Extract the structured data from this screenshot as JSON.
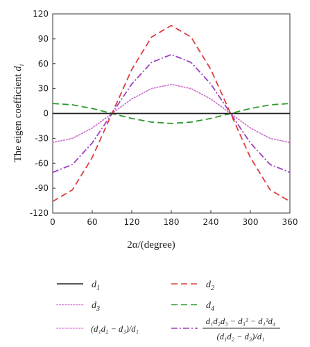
{
  "chart_data": {
    "type": "line",
    "xlabel": "2α/(degree)",
    "ylabel": "The eigen coefficient d",
    "ylabel_sub": "i",
    "xlim": [
      0,
      360
    ],
    "ylim": [
      -120,
      120
    ],
    "xticks": [
      0,
      60,
      120,
      180,
      240,
      300,
      360
    ],
    "yticks": [
      -120,
      -90,
      -60,
      -30,
      0,
      30,
      60,
      90,
      120
    ],
    "grid": false,
    "legend_placement": "below",
    "x": [
      0,
      30,
      60,
      90,
      120,
      150,
      180,
      210,
      240,
      270,
      300,
      330,
      360
    ],
    "series": [
      {
        "name": "d1",
        "color": "#222222",
        "dash": "solid",
        "values": [
          0,
          0,
          0,
          0,
          0,
          0,
          0,
          0,
          0,
          0,
          0,
          0,
          0
        ]
      },
      {
        "name": "d2",
        "color": "#e03c3c",
        "dash": "dashed",
        "values": [
          -106,
          -92,
          -53,
          0,
          53,
          92,
          106,
          92,
          53,
          0,
          -53,
          -92,
          -106
        ]
      },
      {
        "name": "d3",
        "color": "#cc77cc",
        "dash": "dotted",
        "values": [
          -35,
          -30,
          -17.5,
          0,
          17.5,
          30,
          35,
          30,
          17.5,
          0,
          -17.5,
          -30,
          -35
        ]
      },
      {
        "name": "d4",
        "color": "#2e9a2e",
        "dash": "dashed",
        "values": [
          12,
          10.4,
          6,
          0,
          -6,
          -10.4,
          -12,
          -10.4,
          -6,
          0,
          6,
          10.4,
          12
        ]
      },
      {
        "name": "(d1d2 − d3)/d1",
        "color": "#dd88dd",
        "dash": "dotted",
        "values": [
          -35,
          -30,
          -17.5,
          0,
          17.5,
          30,
          35,
          30,
          17.5,
          0,
          -17.5,
          -30,
          -35
        ]
      },
      {
        "name": "(d1d2d3 − d3² − d1²d4)/((d1d2 − d3)/d1)",
        "color": "#9b3fc7",
        "dash": "dashdot",
        "values": [
          -71,
          -61.5,
          -35.5,
          0,
          35.5,
          61.5,
          71,
          61.5,
          35.5,
          0,
          -35.5,
          -61.5,
          -71
        ]
      }
    ],
    "legend": [
      {
        "id": "d1",
        "main": "d",
        "sub": "1"
      },
      {
        "id": "d2",
        "main": "d",
        "sub": "2"
      },
      {
        "id": "d3",
        "main": "d",
        "sub": "3"
      },
      {
        "id": "d4",
        "main": "d",
        "sub": "4"
      },
      {
        "id": "ratio",
        "text": "(d₁d₂ − d₃)/d₁"
      },
      {
        "id": "complex",
        "numerator": "d₁d₂d₃ − d₃² − d₁²d₄",
        "denominator": "(d₁d₂ − d₃)/d₁"
      }
    ]
  }
}
